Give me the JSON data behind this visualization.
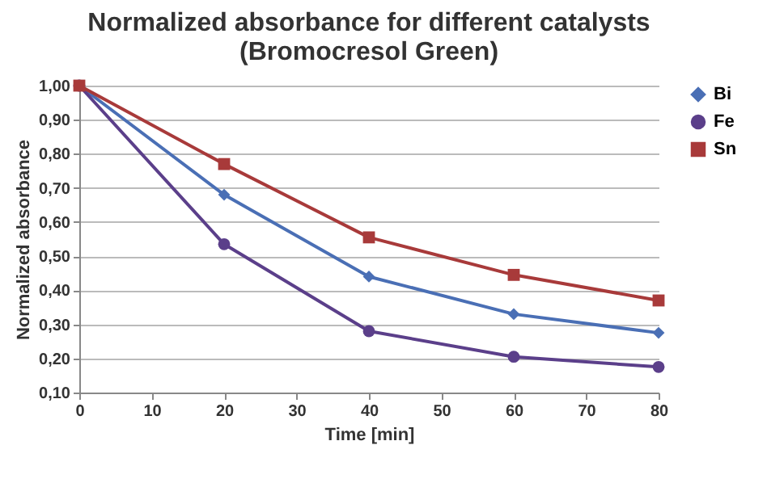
{
  "chart_data": {
    "type": "line",
    "title": "Normalized absorbance for different catalysts",
    "subtitle": "(Bromocresol Green)",
    "xlabel": "Time [min]",
    "ylabel": "Normalized absorbance",
    "x": [
      0,
      20,
      40,
      60,
      80
    ],
    "series": [
      {
        "name": "Bi",
        "color": "#4a6fb5",
        "marker": "diamond",
        "values": [
          1.0,
          0.68,
          0.44,
          0.33,
          0.275
        ]
      },
      {
        "name": "Fe",
        "color": "#5b3f8a",
        "marker": "circle",
        "values": [
          1.0,
          0.535,
          0.28,
          0.205,
          0.175
        ]
      },
      {
        "name": "Sn",
        "color": "#a83a3a",
        "marker": "square",
        "values": [
          1.0,
          0.77,
          0.555,
          0.445,
          0.37
        ]
      }
    ],
    "xlim": [
      0,
      80
    ],
    "xticks": [
      0,
      10,
      20,
      30,
      40,
      50,
      60,
      70,
      80
    ],
    "ylim": [
      0.1,
      1.0
    ],
    "yticks": [
      {
        "value": 0.1,
        "label": "0,10"
      },
      {
        "value": 0.2,
        "label": "0,20"
      },
      {
        "value": 0.3,
        "label": "0,30"
      },
      {
        "value": 0.4,
        "label": "0,40"
      },
      {
        "value": 0.5,
        "label": "0,50"
      },
      {
        "value": 0.6,
        "label": "0,60"
      },
      {
        "value": 0.7,
        "label": "0,70"
      },
      {
        "value": 0.8,
        "label": "0,80"
      },
      {
        "value": 0.9,
        "label": "0,90"
      },
      {
        "value": 1.0,
        "label": "1,00"
      }
    ],
    "grid": "y",
    "legend": "right",
    "line_style": "solid"
  }
}
